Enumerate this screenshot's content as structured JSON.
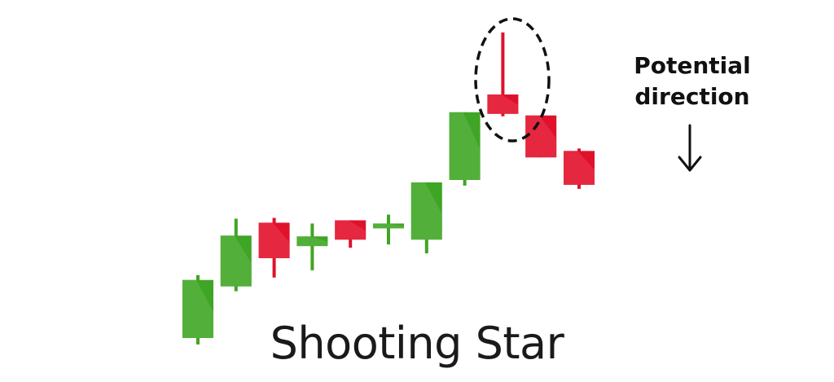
{
  "title": "Shooting Star",
  "annotation": {
    "line1": "Potential",
    "line2": "direction"
  },
  "colors": {
    "bullish": "#3fa524",
    "bullish_highlight": "#62b84a",
    "bearish": "#e0112b",
    "bearish_highlight": "#ea3b50",
    "outline": "#111111"
  },
  "chart_data": {
    "type": "candlestick",
    "highlighted_index": 8,
    "candles": [
      {
        "open": 0.0,
        "close": 7.2,
        "high": 7.8,
        "low": -0.8,
        "direction": "up"
      },
      {
        "open": 6.4,
        "close": 12.7,
        "high": 14.8,
        "low": 5.8,
        "direction": "up"
      },
      {
        "open": 14.3,
        "close": 9.9,
        "high": 14.9,
        "low": 7.5,
        "direction": "down"
      },
      {
        "open": 11.4,
        "close": 12.6,
        "high": 14.2,
        "low": 8.4,
        "direction": "up"
      },
      {
        "open": 14.6,
        "close": 12.2,
        "high": 14.6,
        "low": 11.2,
        "direction": "down"
      },
      {
        "open": 13.6,
        "close": 14.2,
        "high": 15.3,
        "low": 11.6,
        "direction": "up"
      },
      {
        "open": 12.2,
        "close": 19.3,
        "high": 19.3,
        "low": 10.5,
        "direction": "up"
      },
      {
        "open": 19.6,
        "close": 28.0,
        "high": 28.0,
        "low": 18.9,
        "direction": "up"
      },
      {
        "open": 30.2,
        "close": 27.8,
        "high": 37.9,
        "low": 27.5,
        "direction": "down"
      },
      {
        "open": 27.6,
        "close": 22.4,
        "high": 27.6,
        "low": 22.4,
        "direction": "down"
      },
      {
        "open": 23.2,
        "close": 19.0,
        "high": 23.5,
        "low": 18.5,
        "direction": "down"
      }
    ]
  }
}
